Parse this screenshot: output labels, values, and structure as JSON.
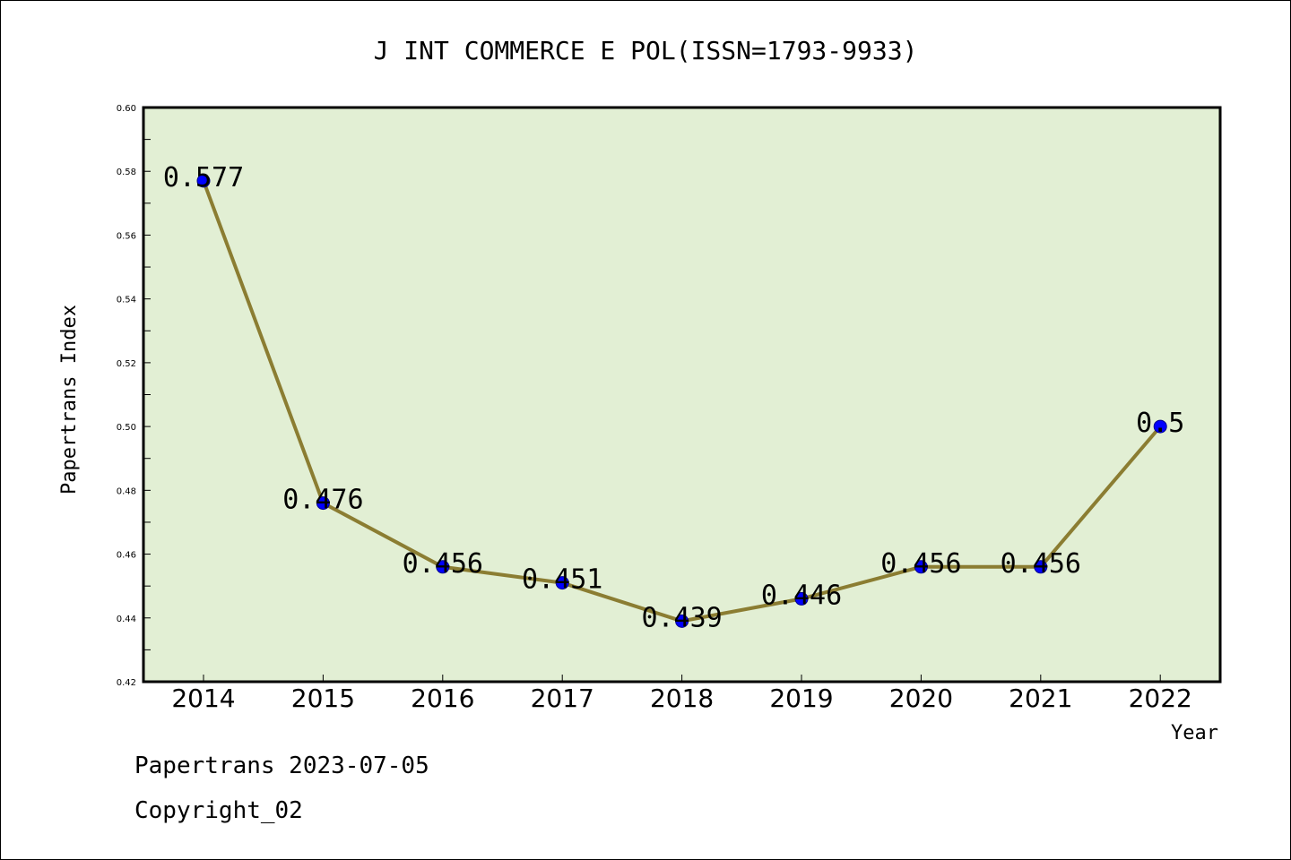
{
  "chart_data": {
    "type": "line",
    "title": "J INT COMMERCE E POL(ISSN=1793-9933)",
    "xlabel": "Year",
    "ylabel": "Papertrans Index",
    "categories": [
      "2014",
      "2015",
      "2016",
      "2017",
      "2018",
      "2019",
      "2020",
      "2021",
      "2022"
    ],
    "values": [
      0.577,
      0.476,
      0.456,
      0.451,
      0.439,
      0.446,
      0.456,
      0.456,
      0.5
    ],
    "data_labels": [
      "0.577",
      "0.476",
      "0.456",
      "0.451",
      "0.439",
      "0.446",
      "0.456",
      "0.456",
      "0.5"
    ],
    "ylim": [
      0.42,
      0.6
    ],
    "yticks": [
      "0.42",
      "0.44",
      "0.46",
      "0.48",
      "0.50",
      "0.52",
      "0.54",
      "0.56",
      "0.58",
      "0.60"
    ],
    "grid": false,
    "colors": {
      "plot_background": "#e2efd4",
      "line": "#8b7d32",
      "marker": "#0000ff"
    }
  },
  "footer": {
    "date_line": "Papertrans 2023-07-05",
    "copyright": "Copyright_02"
  }
}
